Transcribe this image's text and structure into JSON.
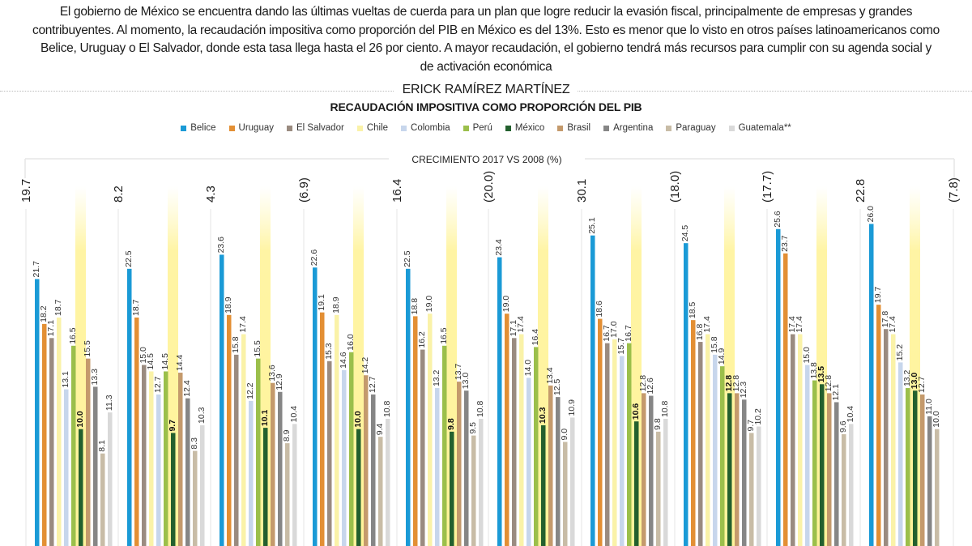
{
  "article": {
    "intro": "El gobierno de México se encuentra dando las últimas vueltas de cuerda para un plan que logre reducir la evasión fiscal, principalmente de empresas y grandes contribuyentes. Al momento, la recaudación impositiva como proporción del PIB en México es del 13%. Esto es menor que lo visto en otros países latinoamericanos como Belice, Uruguay o El Salvador, donde esta tasa llega hasta el 26 por ciento. A mayor recaudación, el gobierno tendrá más recursos para cumplir con su agenda social y de activación económica",
    "byline": "ERICK RAMÍREZ MARTÍNEZ"
  },
  "chart_data": {
    "type": "bar",
    "title": "RECAUDACIÓN IMPOSITIVA COMO PROPORCIÓN DEL PIB",
    "subtitle": "CRECIMIENTO 2017 VS 2008 (%)",
    "xlabel": "",
    "ylabel": "",
    "ylim": [
      0,
      27
    ],
    "grid": false,
    "legend_position": "top",
    "highlight_series": "México",
    "group_count": 10,
    "series": [
      {
        "name": "Belice",
        "color": "#1a9ad6",
        "values": [
          21.7,
          22.5,
          23.6,
          22.6,
          22.5,
          23.4,
          25.1,
          24.5,
          25.6,
          26.0
        ]
      },
      {
        "name": "Uruguay",
        "color": "#e38f34",
        "values": [
          18.2,
          18.7,
          18.9,
          19.1,
          18.8,
          19.0,
          18.6,
          18.5,
          23.7,
          19.7
        ]
      },
      {
        "name": "El Salvador",
        "color": "#9a8b80",
        "values": [
          17.1,
          15.0,
          15.8,
          15.3,
          16.2,
          17.1,
          16.7,
          16.8,
          17.4,
          17.8
        ]
      },
      {
        "name": "Chile",
        "color": "#faf2a8",
        "values": [
          18.7,
          14.5,
          17.4,
          18.9,
          19.0,
          17.4,
          17.0,
          17.4,
          17.4,
          17.4
        ]
      },
      {
        "name": "Colombia",
        "color": "#c7d6ec",
        "values": [
          13.1,
          12.7,
          12.2,
          14.6,
          13.2,
          14.0,
          15.7,
          15.8,
          15.0,
          15.2
        ]
      },
      {
        "name": "Perú",
        "color": "#9bbf4b",
        "values": [
          16.5,
          14.5,
          15.5,
          16.0,
          16.5,
          16.4,
          16.7,
          14.9,
          13.8,
          13.2
        ]
      },
      {
        "name": "México",
        "color": "#23602e",
        "values": [
          10.0,
          9.7,
          10.1,
          10.0,
          9.8,
          10.3,
          10.6,
          12.8,
          13.5,
          13.0
        ]
      },
      {
        "name": "Brasil",
        "color": "#c49a6c",
        "values": [
          15.5,
          14.4,
          13.6,
          14.2,
          13.7,
          13.4,
          12.8,
          12.8,
          12.8,
          12.7
        ]
      },
      {
        "name": "Argentina",
        "color": "#868686",
        "values": [
          13.3,
          12.4,
          12.9,
          12.7,
          13.0,
          12.5,
          12.6,
          12.3,
          12.1,
          11.0
        ]
      },
      {
        "name": "Paraguay",
        "color": "#c8bca6",
        "values": [
          8.1,
          8.3,
          8.9,
          9.4,
          9.5,
          9.0,
          9.8,
          9.7,
          9.6,
          10.0
        ]
      },
      {
        "name": "Guatemala**",
        "color": "#d9d9d9",
        "values": [
          11.3,
          10.3,
          10.4,
          10.8,
          10.8,
          10.9,
          10.8,
          10.2,
          10.4,
          null
        ]
      }
    ],
    "display_labels": [
      [
        "21.7",
        "18.2",
        "17.1",
        "18.7",
        "13.1",
        "16.5",
        "10.0",
        "15.5",
        "13.3",
        "8.1",
        "11.3"
      ],
      [
        "22.5",
        "18.7",
        "15.0",
        "14.5",
        "12.7",
        "14.5",
        "9.7",
        "14.4",
        "12.4",
        "8.3",
        "10.3"
      ],
      [
        "23.6",
        "18.9",
        "15.8",
        "17.4",
        "12.2",
        "15.5",
        "10.1",
        "13.6",
        "12.9",
        "8.9",
        "10.4"
      ],
      [
        "22.6",
        "19.1",
        "15.3",
        "18.9",
        "14.6",
        "16.0",
        "10.0",
        "14.2",
        "12.7",
        "9.4",
        "10.8"
      ],
      [
        "22.5",
        "18.8",
        "16.2",
        "19.0",
        "13.2",
        "16.5",
        "9.8",
        "13.7",
        "13.0",
        "9.5",
        "10.8"
      ],
      [
        "23.4",
        "19.0",
        "17.1",
        "17.4",
        "14.0",
        "16.4",
        "10.3",
        "13.4",
        "12.5",
        "9.0",
        "10.9"
      ],
      [
        "25.1",
        "18.6",
        "16.7",
        "17.0",
        "15.7",
        "16.7",
        "10.6",
        "12.8",
        "12.6",
        "9.8",
        "10.8"
      ],
      [
        "24.5",
        "18.5",
        "16.8",
        "17.4",
        "15.8",
        "14.9",
        "12.8",
        "12.8",
        "12.3",
        "9.7",
        "10.2"
      ],
      [
        "25.6",
        "23.7",
        "17.4",
        "17.4",
        "15.0",
        "13.8",
        "13.5",
        "12.8",
        "12.1",
        "9.6",
        "10.4"
      ],
      [
        "26.0",
        "19.7",
        "17.8",
        "17.4",
        "15.2",
        "13.2",
        "13.0",
        "12.7",
        "11.0",
        "10.0",
        null
      ]
    ],
    "growth_2017_vs_2008": [
      {
        "country": "Belice",
        "value": 19.7,
        "label": "19.7"
      },
      {
        "country": "Uruguay",
        "value": 8.2,
        "label": "8.2"
      },
      {
        "country": "El Salvador",
        "value": 4.3,
        "label": "4.3"
      },
      {
        "country": "Chile",
        "value": -6.9,
        "label": "(6.9)"
      },
      {
        "country": "Colombia",
        "value": 16.4,
        "label": "16.4"
      },
      {
        "country": "Perú",
        "value": -20.0,
        "label": "(20.0)"
      },
      {
        "country": "México",
        "value": 30.1,
        "label": "30.1"
      },
      {
        "country": "Brasil",
        "value": -18.0,
        "label": "(18.0)"
      },
      {
        "country": "Argentina",
        "value": -17.7,
        "label": "(17.7)"
      },
      {
        "country": "Paraguay",
        "value": 22.8,
        "label": "22.8"
      },
      {
        "country": "Guatemala**",
        "value": -7.8,
        "label": "(7.8)"
      }
    ]
  }
}
